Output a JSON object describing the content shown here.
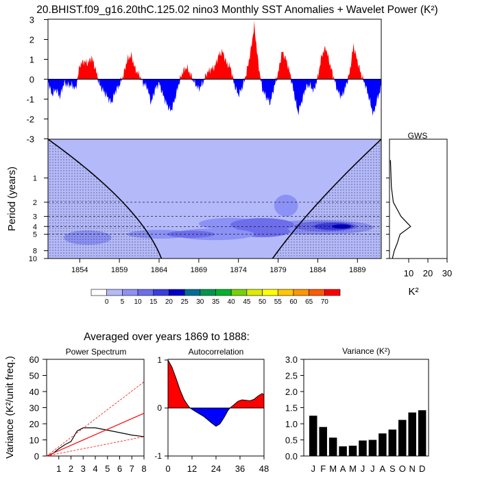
{
  "page_title": "20.BHIST.f09_g16.20thC.125.02 nino3 Monthly SST Anomalies + Wavelet Power (K²)",
  "chart_data": [
    {
      "id": "sst",
      "type": "area",
      "title": "20.BHIST.f09_g16.20thC.125.02 nino3 Monthly SST Anomalies + Wavelet Power (K²)",
      "ylim": [
        -3,
        3
      ],
      "y_ticks": [
        "3",
        "2",
        "1",
        "0",
        "-1",
        "-2",
        "-3"
      ],
      "x_range": [
        1850,
        1892
      ],
      "anchors": [
        [
          1850.0,
          -0.1
        ],
        [
          1850.5,
          -0.8
        ],
        [
          1851.0,
          -0.5
        ],
        [
          1851.5,
          -0.9
        ],
        [
          1852.0,
          -0.2
        ],
        [
          1852.5,
          -0.3
        ],
        [
          1853.0,
          -0.3
        ],
        [
          1853.5,
          -0.5
        ],
        [
          1854.0,
          0.7
        ],
        [
          1854.5,
          0.9
        ],
        [
          1855.0,
          0.8
        ],
        [
          1855.5,
          1.1
        ],
        [
          1856.0,
          0.5
        ],
        [
          1856.5,
          -0.3
        ],
        [
          1857.0,
          -0.6
        ],
        [
          1857.5,
          -0.9
        ],
        [
          1858.0,
          -1.2
        ],
        [
          1858.5,
          -0.6
        ],
        [
          1859.0,
          -0.3
        ],
        [
          1859.5,
          0.2
        ],
        [
          1860.0,
          1.0
        ],
        [
          1860.5,
          1.2
        ],
        [
          1861.0,
          0.5
        ],
        [
          1861.5,
          0.2
        ],
        [
          1862.0,
          -0.2
        ],
        [
          1862.5,
          -0.4
        ],
        [
          1863.0,
          -1.2
        ],
        [
          1863.5,
          -0.5
        ],
        [
          1864.0,
          -0.2
        ],
        [
          1864.5,
          -0.8
        ],
        [
          1865.0,
          -1.3
        ],
        [
          1865.5,
          -1.6
        ],
        [
          1866.0,
          -1.0
        ],
        [
          1866.5,
          -0.2
        ],
        [
          1867.0,
          0.4
        ],
        [
          1867.5,
          0.6
        ],
        [
          1868.0,
          0.2
        ],
        [
          1868.5,
          -0.2
        ],
        [
          1869.0,
          -0.5
        ],
        [
          1869.5,
          -0.2
        ],
        [
          1870.0,
          0.3
        ],
        [
          1870.5,
          0.5
        ],
        [
          1871.0,
          0.6
        ],
        [
          1871.5,
          1.2
        ],
        [
          1872.0,
          1.4
        ],
        [
          1872.5,
          0.8
        ],
        [
          1873.0,
          0.6
        ],
        [
          1873.5,
          -0.3
        ],
        [
          1874.0,
          -0.8
        ],
        [
          1874.5,
          -0.4
        ],
        [
          1875.0,
          0.3
        ],
        [
          1875.5,
          1.3
        ],
        [
          1876.0,
          2.7
        ],
        [
          1876.5,
          0.8
        ],
        [
          1877.0,
          -0.5
        ],
        [
          1877.5,
          -0.9
        ],
        [
          1878.0,
          -1.2
        ],
        [
          1878.5,
          -0.4
        ],
        [
          1879.0,
          0.3
        ],
        [
          1879.5,
          1.4
        ],
        [
          1880.0,
          1.0
        ],
        [
          1880.5,
          0.3
        ],
        [
          1881.0,
          -0.7
        ],
        [
          1881.5,
          -1.7
        ],
        [
          1882.0,
          -1.1
        ],
        [
          1882.5,
          -0.4
        ],
        [
          1883.0,
          -0.3
        ],
        [
          1883.5,
          -0.6
        ],
        [
          1884.0,
          0.1
        ],
        [
          1884.5,
          1.2
        ],
        [
          1885.0,
          1.6
        ],
        [
          1885.5,
          0.8
        ],
        [
          1886.0,
          0.1
        ],
        [
          1886.5,
          -0.6
        ],
        [
          1887.0,
          -0.9
        ],
        [
          1887.5,
          -0.4
        ],
        [
          1888.0,
          0.3
        ],
        [
          1888.5,
          1.7
        ],
        [
          1889.0,
          0.9
        ],
        [
          1889.5,
          0.2
        ],
        [
          1890.0,
          -0.3
        ],
        [
          1890.5,
          -1.0
        ],
        [
          1891.0,
          -1.8
        ],
        [
          1891.5,
          -1.0
        ],
        [
          1892.0,
          -0.4
        ]
      ]
    },
    {
      "id": "wavelet",
      "type": "heatmap",
      "ylabel": "Period (years)",
      "y_ticks": [
        "1",
        "2",
        "3",
        "4",
        "5",
        "8",
        "10"
      ],
      "x_ticks": [
        "1854",
        "1859",
        "1864",
        "1869",
        "1874",
        "1879",
        "1884",
        "1889"
      ],
      "x_range": [
        1850,
        1892
      ],
      "cone_base": [
        1864.3,
        1878.3
      ],
      "dashed_periods": [
        2,
        3,
        4,
        5
      ],
      "colorbar_labels": [
        "0",
        "5",
        "10",
        "15",
        "20",
        "25",
        "30",
        "35",
        "40",
        "45",
        "50",
        "55",
        "60",
        "65",
        "70"
      ],
      "colorbar_colors": [
        "#ffffff",
        "#b4b9fa",
        "#8c91f5",
        "#6e6eeb",
        "#3c3ce1",
        "#0000c8",
        "#006e96",
        "#009650",
        "#00b42d",
        "#78d200",
        "#dceb00",
        "#ffff00",
        "#ffc800",
        "#ff9600",
        "#ff5a00",
        "#ff0000"
      ],
      "blobs": [
        {
          "x": 1871,
          "p": 4.3,
          "rx": 20,
          "rp": 0.13,
          "c": 1
        },
        {
          "x": 1884,
          "p": 4.1,
          "rx": 7,
          "rp": 0.1,
          "c": 2
        },
        {
          "x": 1885,
          "p": 4.0,
          "rx": 4,
          "rp": 0.07,
          "c": 3
        },
        {
          "x": 1886,
          "p": 4.0,
          "rx": 2.5,
          "rp": 0.05,
          "c": 4
        },
        {
          "x": 1887,
          "p": 4.0,
          "rx": 1.2,
          "rp": 0.03,
          "c": 5
        },
        {
          "x": 1873,
          "p": 3.7,
          "rx": 4,
          "rp": 0.08,
          "c": 2
        },
        {
          "x": 1877,
          "p": 3.8,
          "rx": 4,
          "rp": 0.09,
          "c": 3
        },
        {
          "x": 1877,
          "p": 4.6,
          "rx": 3.5,
          "rp": 0.08,
          "c": 3
        },
        {
          "x": 1871,
          "p": 5.0,
          "rx": 5,
          "rp": 0.08,
          "c": 2
        },
        {
          "x": 1859,
          "p": 2.5,
          "rx": 4,
          "rp": 0.1,
          "c": 1
        },
        {
          "x": 1862,
          "p": 3.0,
          "rx": 5,
          "rp": 0.1,
          "c": 1
        },
        {
          "x": 1878,
          "p": 1.5,
          "rx": 3,
          "rp": 0.1,
          "c": 1
        },
        {
          "x": 1880,
          "p": 2.2,
          "rx": 1.5,
          "rp": 0.15,
          "c": 2
        },
        {
          "x": 1857,
          "p": 7.0,
          "rx": 4,
          "rp": 0.12,
          "c": 1
        },
        {
          "x": 1855,
          "p": 5.5,
          "rx": 3,
          "rp": 0.1,
          "c": 2
        },
        {
          "x": 1864,
          "p": 5.0,
          "rx": 4,
          "rp": 0.06,
          "c": 2
        },
        {
          "x": 1868,
          "p": 5.0,
          "rx": 3,
          "rp": 0.05,
          "c": 3
        }
      ]
    },
    {
      "id": "gws",
      "type": "line",
      "title": "GWS",
      "xlabel": "K²",
      "x_ticks": [
        "10",
        "20",
        "30"
      ],
      "xlim": [
        0,
        30
      ],
      "points": [
        [
          0.5,
          0.6
        ],
        [
          1.0,
          1.3
        ],
        [
          2.0,
          2.0
        ],
        [
          6.0,
          3.0
        ],
        [
          11.0,
          4.0
        ],
        [
          5.5,
          5.0
        ],
        [
          4.0,
          6.5
        ],
        [
          2.5,
          8.0
        ],
        [
          1.5,
          10.0
        ]
      ]
    },
    {
      "id": "power",
      "type": "line",
      "title": "Power Spectrum",
      "ylabel": "Variance (K²/unit freq.)",
      "ylim": [
        0,
        60
      ],
      "y_ticks": [
        "60",
        "50",
        "40",
        "30",
        "20",
        "10",
        "0"
      ],
      "x_ticks": [
        "1",
        "2",
        "3",
        "4",
        "5",
        "6",
        "7",
        "8"
      ],
      "xlim": [
        0,
        8
      ],
      "series": [
        {
          "name": "spectrum",
          "color": "#000000",
          "points": [
            [
              0,
              0
            ],
            [
              0.5,
              1.5
            ],
            [
              1.0,
              4.5
            ],
            [
              1.5,
              7.0
            ],
            [
              2.0,
              9.0
            ],
            [
              2.5,
              15.5
            ],
            [
              3.0,
              17.5
            ],
            [
              4.0,
              17.5
            ],
            [
              5.0,
              16.0
            ],
            [
              6.0,
              14.5
            ],
            [
              7.0,
              13.0
            ],
            [
              8.0,
              12.0
            ]
          ]
        },
        {
          "name": "red-noise",
          "color": "#ff0000",
          "points": [
            [
              0,
              0
            ],
            [
              8,
              26.5
            ]
          ]
        },
        {
          "name": "upper-bound",
          "color": "#ff0000",
          "dashed": true,
          "points": [
            [
              0,
              0
            ],
            [
              8,
              46
            ]
          ]
        },
        {
          "name": "lower-bound",
          "color": "#ff0000",
          "dashed": true,
          "points": [
            [
              0,
              0
            ],
            [
              8,
              12
            ]
          ]
        }
      ]
    },
    {
      "id": "acorr",
      "type": "area",
      "title": "Autocorrelation",
      "ylim": [
        -1,
        1
      ],
      "y_ticks": [
        "1",
        "0",
        "-1"
      ],
      "x_ticks": [
        "0",
        "12",
        "24",
        "36",
        "48"
      ],
      "xlim": [
        0,
        48
      ],
      "points": [
        [
          0,
          1.0
        ],
        [
          2,
          0.85
        ],
        [
          4,
          0.62
        ],
        [
          6,
          0.38
        ],
        [
          8,
          0.18
        ],
        [
          10,
          0.05
        ],
        [
          11,
          0.0
        ],
        [
          14,
          -0.08
        ],
        [
          18,
          -0.18
        ],
        [
          22,
          -0.32
        ],
        [
          24,
          -0.38
        ],
        [
          26,
          -0.33
        ],
        [
          28,
          -0.2
        ],
        [
          30,
          -0.05
        ],
        [
          31,
          0.0
        ],
        [
          33,
          0.07
        ],
        [
          35,
          0.14
        ],
        [
          37,
          0.17
        ],
        [
          39,
          0.16
        ],
        [
          41,
          0.15
        ],
        [
          43,
          0.18
        ],
        [
          45,
          0.25
        ],
        [
          47,
          0.3
        ],
        [
          48,
          0.28
        ]
      ]
    },
    {
      "id": "variance",
      "type": "bar",
      "title": "Variance (K²)",
      "categories": [
        "J",
        "F",
        "M",
        "A",
        "M",
        "J",
        "J",
        "A",
        "S",
        "O",
        "N",
        "D"
      ],
      "values": [
        1.25,
        0.9,
        0.57,
        0.3,
        0.32,
        0.48,
        0.5,
        0.7,
        0.82,
        1.12,
        1.35,
        1.42
      ],
      "ylim": [
        0,
        3
      ],
      "y_ticks": [
        "3.0",
        "2.5",
        "2.0",
        "1.5",
        "1.0",
        "0.5",
        "0.0"
      ]
    }
  ],
  "subtitle": "Averaged over years 1869 to 1888:"
}
